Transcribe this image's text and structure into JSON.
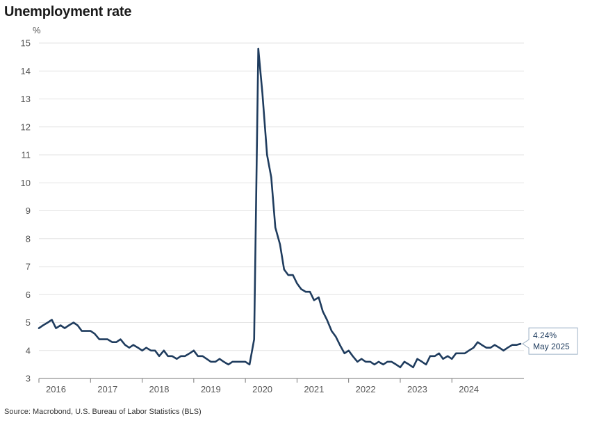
{
  "chart_data": {
    "type": "line",
    "title": "Unemployment rate",
    "ylabel": "%",
    "xlabel": "",
    "ylim": [
      3,
      15
    ],
    "yticks": [
      3,
      4,
      5,
      6,
      7,
      8,
      9,
      10,
      11,
      12,
      13,
      14,
      15
    ],
    "xlim": [
      2016.0,
      2025.37
    ],
    "xticks": [
      {
        "label": "2016",
        "value": 2016
      },
      {
        "label": "2017",
        "value": 2017
      },
      {
        "label": "2018",
        "value": 2018
      },
      {
        "label": "2019",
        "value": 2019
      },
      {
        "label": "2020",
        "value": 2020
      },
      {
        "label": "2021",
        "value": 2021
      },
      {
        "label": "2022",
        "value": 2022
      },
      {
        "label": "2023",
        "value": 2023
      },
      {
        "label": "2024",
        "value": 2024
      }
    ],
    "grid": "horizontal",
    "line_color": "#1f3c5e",
    "series": [
      {
        "name": "",
        "x": [
          2016.0,
          2016.08,
          2016.17,
          2016.25,
          2016.33,
          2016.42,
          2016.5,
          2016.58,
          2016.67,
          2016.75,
          2016.83,
          2016.92,
          2017.0,
          2017.08,
          2017.17,
          2017.25,
          2017.33,
          2017.42,
          2017.5,
          2017.58,
          2017.67,
          2017.75,
          2017.83,
          2017.92,
          2018.0,
          2018.08,
          2018.17,
          2018.25,
          2018.33,
          2018.42,
          2018.5,
          2018.58,
          2018.67,
          2018.75,
          2018.83,
          2018.92,
          2019.0,
          2019.08,
          2019.17,
          2019.25,
          2019.33,
          2019.42,
          2019.5,
          2019.58,
          2019.67,
          2019.75,
          2019.83,
          2019.92,
          2020.0,
          2020.08,
          2020.17,
          2020.25,
          2020.33,
          2020.42,
          2020.5,
          2020.58,
          2020.67,
          2020.75,
          2020.83,
          2020.92,
          2021.0,
          2021.08,
          2021.17,
          2021.25,
          2021.33,
          2021.42,
          2021.5,
          2021.58,
          2021.67,
          2021.75,
          2021.83,
          2021.92,
          2022.0,
          2022.08,
          2022.17,
          2022.25,
          2022.33,
          2022.42,
          2022.5,
          2022.58,
          2022.67,
          2022.75,
          2022.83,
          2022.92,
          2023.0,
          2023.08,
          2023.17,
          2023.25,
          2023.33,
          2023.42,
          2023.5,
          2023.58,
          2023.67,
          2023.75,
          2023.83,
          2023.92,
          2024.0,
          2024.08,
          2024.17,
          2024.25,
          2024.33,
          2024.42,
          2024.5,
          2024.58,
          2024.67,
          2024.75,
          2024.83,
          2024.92,
          2025.0,
          2025.08,
          2025.17,
          2025.25,
          2025.33
        ],
        "values": [
          4.8,
          4.9,
          5.0,
          5.1,
          4.8,
          4.9,
          4.8,
          4.9,
          5.0,
          4.9,
          4.7,
          4.7,
          4.7,
          4.6,
          4.4,
          4.4,
          4.4,
          4.3,
          4.3,
          4.4,
          4.2,
          4.1,
          4.2,
          4.1,
          4.0,
          4.1,
          4.0,
          4.0,
          3.8,
          4.0,
          3.8,
          3.8,
          3.7,
          3.8,
          3.8,
          3.9,
          4.0,
          3.8,
          3.8,
          3.7,
          3.6,
          3.6,
          3.7,
          3.6,
          3.5,
          3.6,
          3.6,
          3.6,
          3.6,
          3.5,
          4.4,
          14.8,
          13.2,
          11.0,
          10.2,
          8.4,
          7.8,
          6.9,
          6.7,
          6.7,
          6.4,
          6.2,
          6.1,
          6.1,
          5.8,
          5.9,
          5.4,
          5.1,
          4.7,
          4.5,
          4.2,
          3.9,
          4.0,
          3.8,
          3.6,
          3.7,
          3.6,
          3.6,
          3.5,
          3.6,
          3.5,
          3.6,
          3.6,
          3.5,
          3.4,
          3.6,
          3.5,
          3.4,
          3.7,
          3.6,
          3.5,
          3.8,
          3.8,
          3.9,
          3.7,
          3.8,
          3.7,
          3.9,
          3.9,
          3.9,
          4.0,
          4.1,
          4.3,
          4.2,
          4.1,
          4.1,
          4.2,
          4.1,
          4.0,
          4.1,
          4.2,
          4.2,
          4.24
        ]
      }
    ],
    "annotation": {
      "value_label": "4.24%",
      "date_label": "May 2025"
    },
    "source": "Source: Macrobond, U.S. Bureau of Labor Statistics (BLS)"
  }
}
